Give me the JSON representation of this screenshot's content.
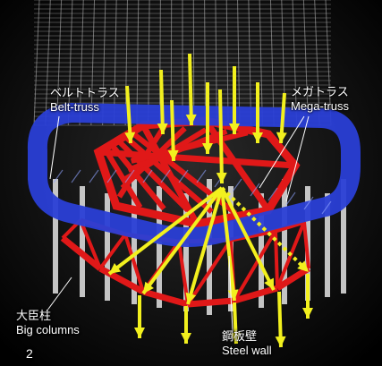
{
  "labels": {
    "belt_truss": {
      "ja": "ベルトトラス",
      "en": "Belt-truss"
    },
    "mega_truss": {
      "ja": "メガトラス",
      "en": "Mega-truss"
    },
    "big_columns": {
      "ja": "大臣柱",
      "en": "Big columns"
    },
    "steel_wall": {
      "ja": "鋼板壁",
      "en": "Steel wall"
    },
    "figure_number": "2"
  },
  "colors": {
    "background": "#000000",
    "belt_truss": "#2a3fd6",
    "mega_truss": "#e01818",
    "load_arrows": "#f2f01e",
    "columns": "#d8d8d8",
    "grid": "#bcbcbc",
    "leader_lines": "#ffffff"
  }
}
